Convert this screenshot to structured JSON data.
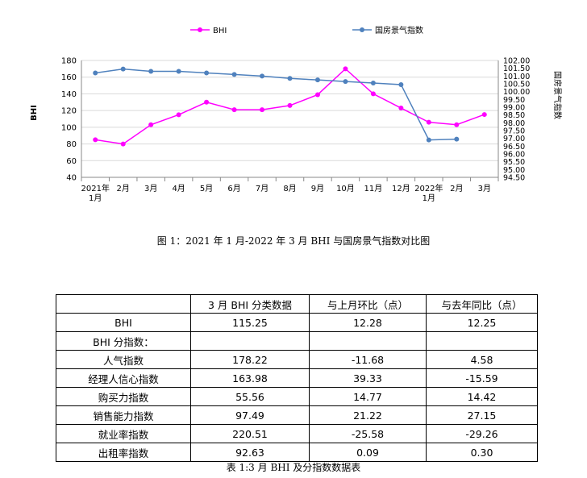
{
  "chart_data": {
    "type": "line",
    "categories": [
      [
        "2021年",
        "1月"
      ],
      [
        "2月"
      ],
      [
        "3月"
      ],
      [
        "4月"
      ],
      [
        "5月"
      ],
      [
        "6月"
      ],
      [
        "7月"
      ],
      [
        "8月"
      ],
      [
        "9月"
      ],
      [
        "10月"
      ],
      [
        "11月"
      ],
      [
        "12月"
      ],
      [
        "2022年",
        "1月"
      ],
      [
        "2月"
      ],
      [
        "3月"
      ]
    ],
    "ylabel": "BHI",
    "y2label": "国房景气指数",
    "ylim": [
      40,
      180
    ],
    "yticks": [
      "40",
      "60",
      "80",
      "100",
      "120",
      "140",
      "160",
      "180"
    ],
    "y2lim": [
      94.5,
      102.0
    ],
    "y2ticks": [
      "94.50",
      "95.00",
      "95.50",
      "96.00",
      "96.50",
      "97.00",
      "97.50",
      "98.00",
      "98.50",
      "99.00",
      "99.50",
      "100.00",
      "100.50",
      "101.00",
      "101.50",
      "102.00"
    ],
    "legend_position": "top",
    "series": [
      {
        "name": "BHI",
        "axis": "left",
        "color": "#ff00ff",
        "values": [
          85,
          80,
          103,
          115,
          130,
          121,
          121,
          126,
          139,
          170,
          140,
          123,
          106,
          103,
          115.25
        ]
      },
      {
        "name": "国房景气指数",
        "axis": "right",
        "color": "#4f81bd",
        "values": [
          101.2,
          101.45,
          101.3,
          101.3,
          101.2,
          101.1,
          101.0,
          100.85,
          100.75,
          100.65,
          100.55,
          100.45,
          96.9,
          96.95,
          null
        ]
      }
    ]
  },
  "figure_caption": "图 1：2021 年 1 月-2022 年 3 月 BHI 与国房景气指数对比图",
  "table": {
    "headers": [
      "",
      "3 月 BHI 分类数据",
      "与上月环比（点）",
      "与去年同比（点）"
    ],
    "rows": [
      [
        "BHI",
        "115.25",
        "12.28",
        "12.25"
      ],
      [
        "BHI 分指数：",
        "",
        "",
        ""
      ],
      [
        "人气指数",
        "178.22",
        "-11.68",
        "4.58"
      ],
      [
        "经理人信心指数",
        "163.98",
        "39.33",
        "-15.59"
      ],
      [
        "购买力指数",
        "55.56",
        "14.77",
        "14.42"
      ],
      [
        "销售能力指数",
        "97.49",
        "21.22",
        "27.15"
      ],
      [
        "就业率指数",
        "220.51",
        "-25.58",
        "-29.26"
      ],
      [
        "出租率指数",
        "92.63",
        "0.09",
        "0.30"
      ]
    ],
    "caption": "表 1:3 月 BHI 及分指数数据表"
  }
}
